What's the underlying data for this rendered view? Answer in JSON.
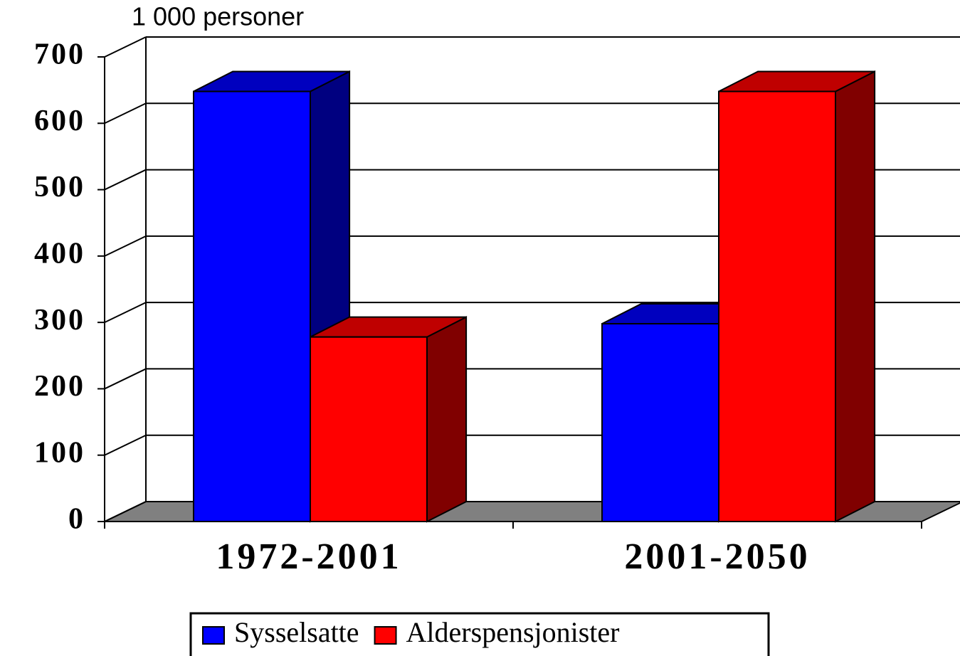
{
  "chart_data": {
    "type": "bar3d",
    "axis_title": "1 000 personer",
    "categories": [
      "1972-2001",
      "2001-2050"
    ],
    "series": [
      {
        "name": "Sysselsatte",
        "color": "#0000ff",
        "values": [
          648,
          298
        ]
      },
      {
        "name": "Alderspensjonister",
        "color": "#ff0000",
        "values": [
          278,
          648
        ]
      }
    ],
    "ylim": [
      0,
      700
    ],
    "yticks": [
      0,
      100,
      200,
      300,
      400,
      500,
      600,
      700
    ],
    "grid": true,
    "legend": "bottom"
  }
}
